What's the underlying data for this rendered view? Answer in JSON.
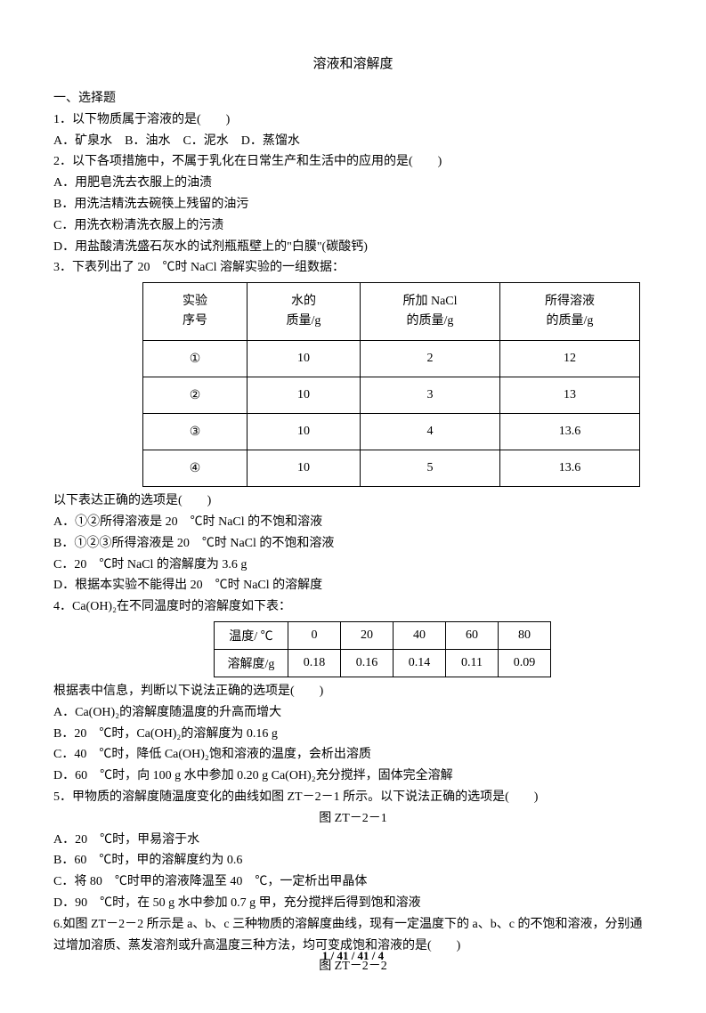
{
  "title": "溶液和溶解度",
  "section1": "一、选择题",
  "q1": "1．以下物质属于溶液的是(　　)",
  "q1_opts": "A．矿泉水　B．油水　C．泥水　D．蒸馏水",
  "q2": "2．以下各项措施中，不属于乳化在日常生产和生活中的应用的是(　　)",
  "q2a": "A．用肥皂洗去衣服上的油渍",
  "q2b": "B．用洗洁精洗去碗筷上残留的油污",
  "q2c": "C．用洗衣粉清洗衣服上的污渍",
  "q2d": "D．用盐酸清洗盛石灰水的试剂瓶瓶壁上的\"白膜\"(碳酸钙)",
  "q3": "3．下表列出了 20　℃时 NaCl 溶解实验的一组数据：",
  "tbl1": {
    "h1a": "实验",
    "h1b": "序号",
    "h2a": "水的",
    "h2b": "质量/g",
    "h3a": "所加 NaCl",
    "h3b": "的质量/g",
    "h4a": "所得溶液",
    "h4b": "的质量/g",
    "rows": [
      [
        "①",
        "10",
        "2",
        "12"
      ],
      [
        "②",
        "10",
        "3",
        "13"
      ],
      [
        "③",
        "10",
        "4",
        "13.6"
      ],
      [
        "④",
        "10",
        "5",
        "13.6"
      ]
    ]
  },
  "q3_after": "以下表达正确的选项是(　　)",
  "q3a": "A．①②所得溶液是 20　℃时 NaCl 的不饱和溶液",
  "q3b": "B．①②③所得溶液是 20　℃时 NaCl 的不饱和溶液",
  "q3c": "C．20　℃时 NaCl 的溶解度为 3.6 g",
  "q3d": "D．根据本实验不能得出 20　℃时 NaCl 的溶解度",
  "q4": "4．Ca(OH)₂在不同温度时的溶解度如下表：",
  "tbl2": {
    "rows": [
      [
        "温度/ ℃",
        "0",
        "20",
        "40",
        "60",
        "80"
      ],
      [
        "溶解度/g",
        "0.18",
        "0.16",
        "0.14",
        "0.11",
        "0.09"
      ]
    ]
  },
  "q4_after": "根据表中信息，判断以下说法正确的选项是(　　)",
  "q4a": "A．Ca(OH)₂的溶解度随温度的升高而增大",
  "q4b": "B．20　℃时，Ca(OH)₂的溶解度为 0.16 g",
  "q4c": "C．40　℃时，降低 Ca(OH)₂饱和溶液的温度，会析出溶质",
  "q4d": "D．60　℃时，向 100 g 水中参加 0.20 g Ca(OH)₂充分搅拌，固体完全溶解",
  "q5": "5．甲物质的溶解度随温度变化的曲线如图 ZT－2－1 所示。以下说法正确的选项是(　　)",
  "fig1": "图 ZT－2－1",
  "q5a": "A．20　℃时，甲易溶于水",
  "q5b": "B．60　℃时，甲的溶解度约为 0.6",
  "q5c": "C．将 80　℃时甲的溶液降温至 40　℃，一定析出甲晶体",
  "q5d": "D．90　℃时，在 50 g 水中参加 0.7 g 甲，充分搅拌后得到饱和溶液",
  "q6": "6.如图 ZT－2－2 所示是 a、b、c 三种物质的溶解度曲线，现有一定温度下的 a、b、c 的不饱和溶液，分别通过增加溶质、蒸发溶剂或升高温度三种方法，均可变成饱和溶液的是(　　)",
  "fig2": "图 ZT－2－2",
  "footer": "1 / 41 / 41 / 4"
}
